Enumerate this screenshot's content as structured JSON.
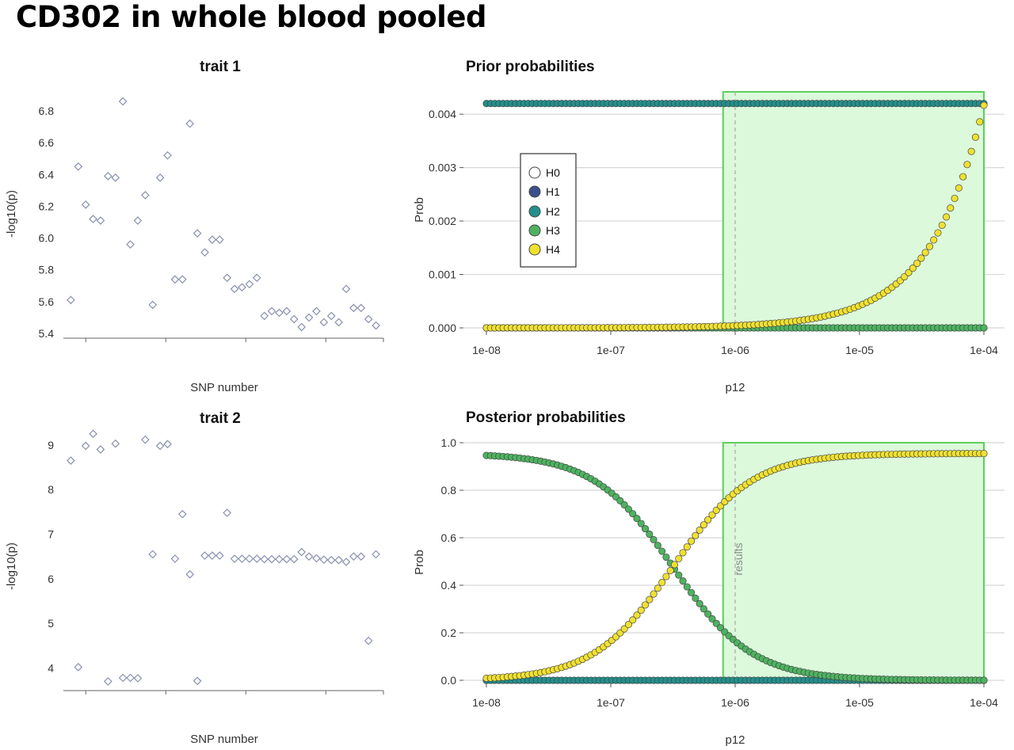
{
  "page": {
    "title": "CD302 in whole blood pooled"
  },
  "colors": {
    "H0": "#ffffff",
    "H1": "#3b4f8a",
    "H2": "#21908c",
    "H3": "#4db360",
    "H4": "#f0e130",
    "region": "#dcf9dc",
    "region_edge": "#5cd05c",
    "trait_points": "#8890b0"
  },
  "chart_data": [
    {
      "id": "trait1",
      "type": "scatter",
      "title": "trait 1",
      "xlabel": "SNP number",
      "ylabel": "-log10(p)",
      "ylim": [
        5.4,
        6.9
      ],
      "yticks": [
        5.4,
        5.6,
        5.8,
        6.0,
        6.2,
        6.4,
        6.6,
        6.8
      ],
      "ytick_labels": [
        "5.4",
        "5.6",
        "5.8",
        "6.0",
        "6.2",
        "6.4",
        "6.6",
        "6.8"
      ],
      "xlim": [
        0,
        43
      ],
      "x": [
        1,
        2,
        3,
        4,
        5,
        6,
        7,
        8,
        9,
        10,
        11,
        12,
        13,
        14,
        15,
        16,
        17,
        18,
        19,
        20,
        21,
        22,
        23,
        24,
        25,
        26,
        27,
        28,
        29,
        30,
        31,
        32,
        33,
        34,
        35,
        36,
        37,
        38,
        39,
        40,
        41,
        42
      ],
      "values": [
        5.61,
        6.45,
        6.21,
        6.12,
        6.11,
        6.39,
        6.38,
        6.86,
        5.96,
        6.11,
        6.27,
        5.58,
        6.38,
        6.52,
        5.74,
        5.74,
        6.72,
        6.03,
        5.91,
        5.99,
        5.99,
        5.75,
        5.68,
        5.69,
        5.71,
        5.75,
        5.51,
        5.54,
        5.53,
        5.54,
        5.49,
        5.44,
        5.5,
        5.54,
        5.47,
        5.51,
        5.47,
        5.68,
        5.56,
        5.56,
        5.49,
        5.45
      ]
    },
    {
      "id": "trait2",
      "type": "scatter",
      "title": "trait 2",
      "xlabel": "SNP number",
      "ylabel": "-log10(p)",
      "ylim": [
        3.6,
        9.3
      ],
      "yticks": [
        4,
        5,
        6,
        7,
        8,
        9
      ],
      "ytick_labels": [
        "4",
        "5",
        "6",
        "7",
        "8",
        "9"
      ],
      "xlim": [
        0,
        43
      ],
      "x": [
        1,
        2,
        3,
        4,
        5,
        6,
        7,
        8,
        9,
        10,
        11,
        12,
        13,
        14,
        15,
        16,
        17,
        18,
        19,
        20,
        21,
        22,
        23,
        24,
        25,
        26,
        27,
        28,
        29,
        30,
        31,
        32,
        33,
        34,
        35,
        36,
        37,
        38,
        39,
        40,
        41,
        42
      ],
      "values": [
        8.65,
        4.02,
        8.98,
        9.25,
        8.9,
        3.7,
        9.03,
        3.78,
        3.78,
        3.77,
        9.12,
        6.55,
        8.98,
        9.02,
        6.45,
        7.45,
        6.1,
        3.71,
        6.52,
        6.52,
        6.52,
        7.48,
        6.45,
        6.45,
        6.45,
        6.45,
        6.44,
        6.44,
        6.44,
        6.44,
        6.44,
        6.6,
        6.5,
        6.46,
        6.43,
        6.42,
        6.42,
        6.38,
        6.5,
        6.5,
        4.61,
        6.55
      ]
    },
    {
      "id": "prior",
      "type": "scatter",
      "title": "Prior probabilities",
      "xlabel": "p12",
      "ylabel": "Prob",
      "x_scale": "log",
      "xlim": [
        1e-08,
        0.0001
      ],
      "xticks": [
        1e-08,
        1e-07,
        1e-06,
        1e-05,
        0.0001
      ],
      "xtick_labels": [
        "1e-08",
        "1e-07",
        "1e-06",
        "1e-05",
        "1e-04"
      ],
      "ylim": [
        0,
        0.00421
      ],
      "yticks": [
        0,
        0.001,
        0.002,
        0.003,
        0.004
      ],
      "ytick_labels": [
        "0.000",
        "0.001",
        "0.002",
        "0.003",
        "0.004"
      ],
      "shaded_region": [
        8e-07,
        0.0001
      ],
      "marker_line": 1e-06,
      "grid": true,
      "legend": {
        "position": "left",
        "entries": [
          "H0",
          "H1",
          "H2",
          "H3",
          "H4"
        ]
      },
      "series": [
        {
          "name": "H1",
          "values_per_x": "constant 0.0",
          "value": 0.0
        },
        {
          "name": "H2",
          "value": 0.0042
        },
        {
          "name": "H3",
          "value": 0.0
        },
        {
          "name": "H4",
          "formula": "p12 / 0.024"
        }
      ]
    },
    {
      "id": "posterior",
      "type": "scatter",
      "title": "Posterior probabilities",
      "xlabel": "p12",
      "ylabel": "Prob",
      "x_scale": "log",
      "xlim": [
        1e-08,
        0.0001
      ],
      "xticks": [
        1e-08,
        1e-07,
        1e-06,
        1e-05,
        0.0001
      ],
      "xtick_labels": [
        "1e-08",
        "1e-07",
        "1e-06",
        "1e-05",
        "1e-04"
      ],
      "ylim": [
        0,
        1.0
      ],
      "yticks": [
        0,
        0.2,
        0.4,
        0.6,
        0.8,
        1.0
      ],
      "ytick_labels": [
        "0.0",
        "0.2",
        "0.4",
        "0.6",
        "0.8",
        "1.0"
      ],
      "shaded_region": [
        8e-07,
        0.0001
      ],
      "marker_line": 1e-06,
      "marker_label": "results",
      "grid": true,
      "series": [
        {
          "name": "H1",
          "value": 0.0
        },
        {
          "name": "H2",
          "value": 0.0
        },
        {
          "name": "H3",
          "formula": "0.955 - H4"
        },
        {
          "name": "H4",
          "formula": "logistic: log10(p12) midpoint -6.5, posterior at 1e-06 = 0.8"
        }
      ]
    }
  ]
}
